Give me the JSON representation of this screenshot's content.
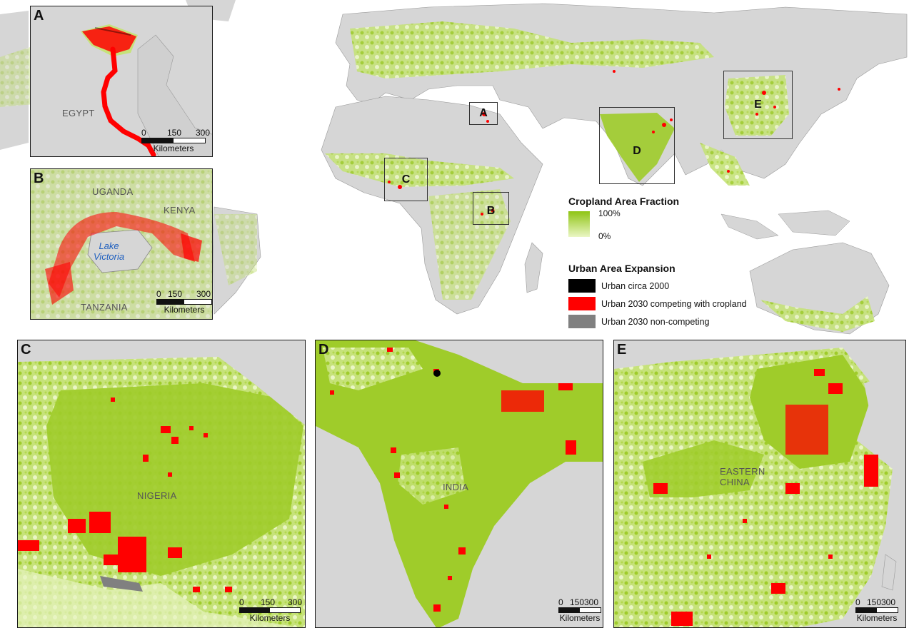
{
  "colors": {
    "cropland_high": "#8fc414",
    "cropland_low": "#eaf6c4",
    "background": "#d9d9d9",
    "urban_2000": "#000000",
    "urban_2030_competing": "#ff0000",
    "urban_2030_noncompeting": "#808080"
  },
  "overview": {
    "boxes": [
      {
        "label": "A"
      },
      {
        "label": "B"
      },
      {
        "label": "C"
      },
      {
        "label": "D"
      },
      {
        "label": "E"
      }
    ]
  },
  "legend": {
    "cropland_title": "Cropland Area Fraction",
    "cropland_max": "100%",
    "cropland_min": "0%",
    "urban_title": "Urban Area Expansion",
    "items": [
      {
        "label": "Urban circa 2000"
      },
      {
        "label": "Urban 2030 competing with cropland"
      },
      {
        "label": "Urban 2030 non-competing"
      }
    ]
  },
  "panels": {
    "A": {
      "label": "A",
      "place": "EGYPT",
      "scale": [
        "0",
        "150",
        "300"
      ],
      "unit": "Kilometers"
    },
    "B": {
      "label": "B",
      "places": [
        "UGANDA",
        "KENYA",
        "TANZANIA"
      ],
      "lake_line1": "Lake",
      "lake_line2": "Victoria",
      "scale": [
        "0",
        "150",
        "300"
      ],
      "unit": "Kilometers"
    },
    "C": {
      "label": "C",
      "place": "NIGERIA",
      "scale": [
        "0",
        "150",
        "300"
      ],
      "unit": "Kilometers"
    },
    "D": {
      "label": "D",
      "place": "INDIA",
      "scale": [
        "0",
        "150",
        "300"
      ],
      "unit": "Kilometers"
    },
    "E": {
      "label": "E",
      "place_line1": "EASTERN",
      "place_line2": "CHINA",
      "scale": [
        "0",
        "150",
        "300"
      ],
      "unit": "Kilometers"
    }
  }
}
